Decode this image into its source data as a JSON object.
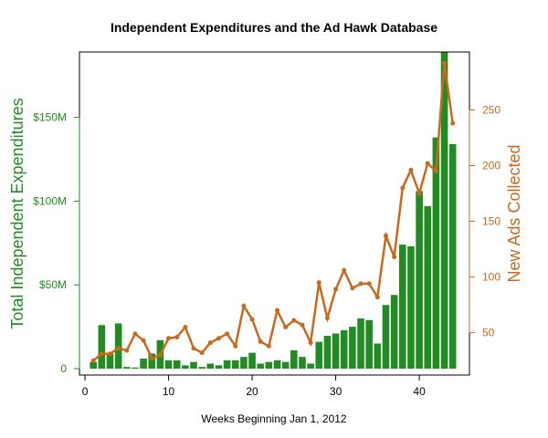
{
  "chart_data": {
    "type": "bar+line",
    "title": "Independent Expenditures and the Ad Hawk Database",
    "xlabel": "Weeks Beginning Jan 1, 2012",
    "ylabel_left": "Total Independent Expenditures",
    "ylabel_right": "New Ads Collected",
    "x_ticks": [
      0,
      10,
      20,
      30,
      40
    ],
    "y_left_ticks": [
      {
        "v": 0,
        "label": "0"
      },
      {
        "v": 50,
        "label": "$50M"
      },
      {
        "v": 100,
        "label": "$100M"
      },
      {
        "v": 150,
        "label": "$150M"
      }
    ],
    "y_right_ticks": [
      50,
      100,
      150,
      200,
      250
    ],
    "xlim": [
      -0.66,
      46
    ],
    "ylim_left": [
      -3.8,
      189
    ],
    "ylim_right": [
      12,
      302
    ],
    "x": [
      1,
      2,
      3,
      4,
      5,
      6,
      7,
      8,
      9,
      10,
      11,
      12,
      13,
      14,
      15,
      16,
      17,
      18,
      19,
      20,
      21,
      22,
      23,
      24,
      25,
      26,
      27,
      28,
      29,
      30,
      31,
      32,
      33,
      34,
      35,
      36,
      37,
      38,
      39,
      40,
      41,
      42,
      43,
      44
    ],
    "series": [
      {
        "name": "Total Independent Expenditures ($M)",
        "type": "bar",
        "axis": "left",
        "color": "#228b22",
        "values": [
          4,
          26,
          9,
          27,
          1,
          0.7,
          6,
          9,
          17,
          5,
          5,
          2,
          4,
          1,
          3,
          2,
          5,
          5,
          7,
          9.5,
          3,
          4,
          5,
          4,
          11,
          7,
          3,
          16,
          19.6,
          21,
          23,
          25,
          30,
          29,
          15,
          38,
          44,
          74,
          73,
          106,
          97,
          138,
          189,
          134
        ]
      },
      {
        "name": "New Ads Collected",
        "type": "line",
        "axis": "right",
        "color": "#c8691e",
        "values": [
          25,
          31,
          31,
          36,
          34,
          49,
          43,
          27,
          30,
          45,
          46,
          55,
          36,
          32,
          41,
          45,
          49,
          38,
          74,
          62,
          42,
          38,
          70,
          55,
          61,
          57,
          41,
          95,
          63,
          89,
          106,
          90,
          94,
          94,
          82,
          137,
          118,
          180,
          196,
          175,
          202,
          195,
          292,
          238
        ]
      }
    ]
  }
}
